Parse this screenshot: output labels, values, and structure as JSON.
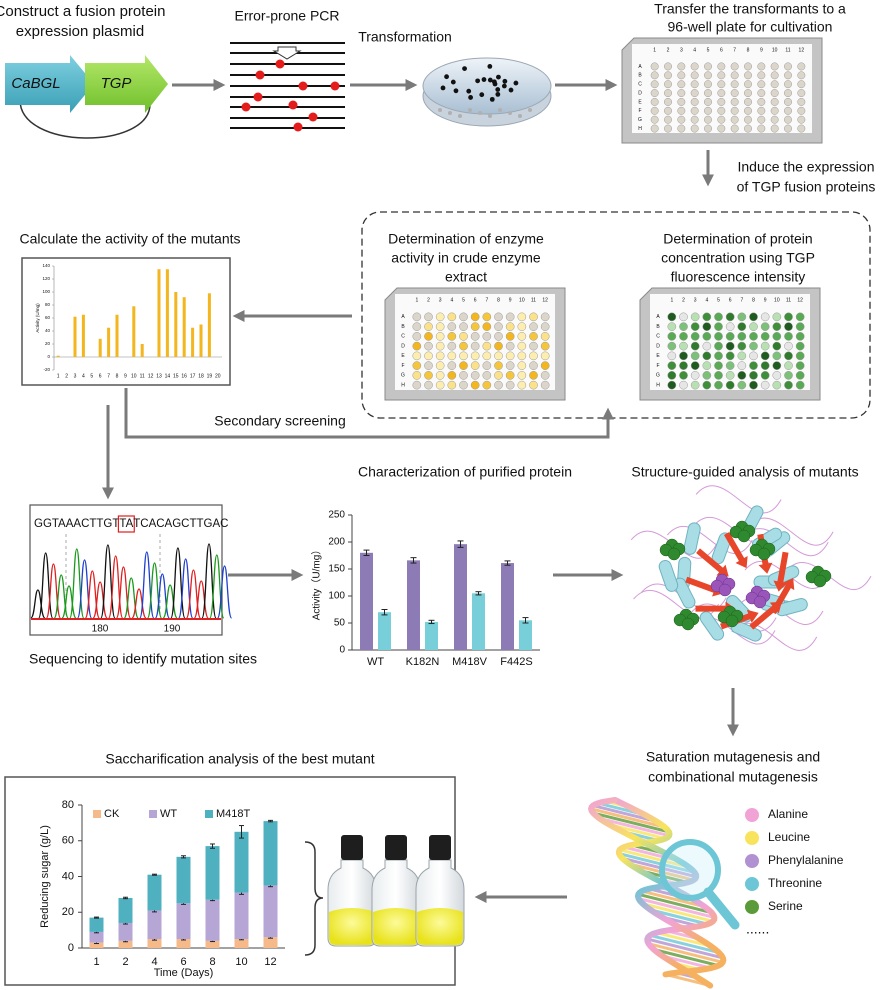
{
  "steps": {
    "construct": [
      "Construct a fusion protein",
      "expression plasmid"
    ],
    "genes": [
      "CaBGL",
      "TGP"
    ],
    "pcr": "Error-prone PCR",
    "transformation": "Transformation",
    "transfer": [
      "Transfer the transformants to a",
      "96-well plate for cultivation"
    ],
    "induce": [
      "Induce the expression",
      "of TGP fusion proteins"
    ],
    "enzyme_activity": [
      "Determination of enzyme",
      "activity in crude enzyme",
      "extract"
    ],
    "protein_conc": [
      "Determination of protein",
      "concentration using TGP",
      "fluorescence intensity"
    ],
    "secondary": "Secondary screening",
    "sequencing": "Sequencing to identify mutation sites",
    "structure": "Structure-guided analysis of mutants",
    "saturation": [
      "Saturation mutagenesis and",
      "combinational mutagenesis"
    ]
  },
  "plate": {
    "columns": [
      "1",
      "2",
      "3",
      "4",
      "5",
      "6",
      "7",
      "8",
      "9",
      "10",
      "11",
      "12"
    ],
    "rows": [
      "A",
      "B",
      "C",
      "D",
      "E",
      "F",
      "G",
      "H"
    ]
  },
  "sequence": {
    "bases": [
      "GGTAAACTTGT",
      "TA",
      "TCACAGCTTGAC"
    ],
    "positions": [
      "180",
      "190"
    ]
  },
  "amino_acids": [
    {
      "name": "Alanine",
      "color": "#f2a3d6"
    },
    {
      "name": "Leucine",
      "color": "#f8e45c"
    },
    {
      "name": "Phenylalanine",
      "color": "#b291d2"
    },
    {
      "name": "Threonine",
      "color": "#6cc6d6"
    },
    {
      "name": "Serine",
      "color": "#5b9a38"
    }
  ],
  "amino_acids_more": "......",
  "chart_data": [
    {
      "type": "bar",
      "title": "Calculate the activity of the mutants",
      "y_label": "Activity (U/mg)",
      "categories": [
        "1",
        "2",
        "3",
        "4",
        "5",
        "6",
        "7",
        "8",
        "9",
        "10",
        "11",
        "12",
        "13",
        "14",
        "15",
        "16",
        "17",
        "18",
        "19",
        "20"
      ],
      "values": [
        2,
        0,
        62,
        65,
        0,
        28,
        45,
        65,
        0,
        78,
        20,
        0,
        135,
        135,
        100,
        92,
        45,
        50,
        98,
        0
      ],
      "color": "#f3b61f",
      "ylim": [
        -20,
        140
      ],
      "yticks": [
        -20,
        0,
        20,
        40,
        60,
        80,
        100,
        120,
        140
      ]
    },
    {
      "type": "bar",
      "title": "Characterization of purified protein",
      "y_label": "Activity（U/mg）",
      "categories": [
        "WT",
        "K182N",
        "M418V",
        "F442S"
      ],
      "series": [
        {
          "color": "#8c7bb5",
          "values": [
            180,
            166,
            196,
            161
          ],
          "errors": [
            5,
            5,
            6,
            4
          ]
        },
        {
          "color": "#79cfd9",
          "values": [
            70,
            52,
            105,
            55
          ],
          "errors": [
            5,
            3,
            3,
            5
          ]
        }
      ],
      "ylim": [
        0,
        250
      ],
      "yticks": [
        0,
        50,
        100,
        150,
        200,
        250
      ]
    },
    {
      "type": "stacked_bar",
      "title": "Saccharification analysis of the best mutant",
      "x_label": "Time (Days)",
      "y_label": "Reducing sugar (g/L)",
      "categories": [
        "1",
        "2",
        "4",
        "6",
        "8",
        "10",
        "12"
      ],
      "series": [
        {
          "name": "CK",
          "color": "#f5b98a",
          "values": [
            3,
            4,
            5,
            5,
            4,
            5,
            6
          ],
          "errors": [
            0.5,
            0.5,
            0.6,
            0.5,
            0.4,
            0.4,
            0.5
          ]
        },
        {
          "name": "WT",
          "color": "#b6a6d6",
          "values": [
            6,
            10,
            16,
            20,
            23,
            26,
            29
          ],
          "errors": [
            0.5,
            0.6,
            0.8,
            0.6,
            0.5,
            1,
            0.7
          ]
        },
        {
          "name": "M418T",
          "color": "#4fb0c0",
          "values": [
            8,
            14,
            20,
            26,
            30,
            34,
            36
          ],
          "errors": [
            0.3,
            0.4,
            0.3,
            0.6,
            1.2,
            3.5,
            0.4
          ]
        }
      ],
      "ylim": [
        0,
        80
      ],
      "yticks": [
        0,
        20,
        40,
        60,
        80
      ]
    }
  ]
}
